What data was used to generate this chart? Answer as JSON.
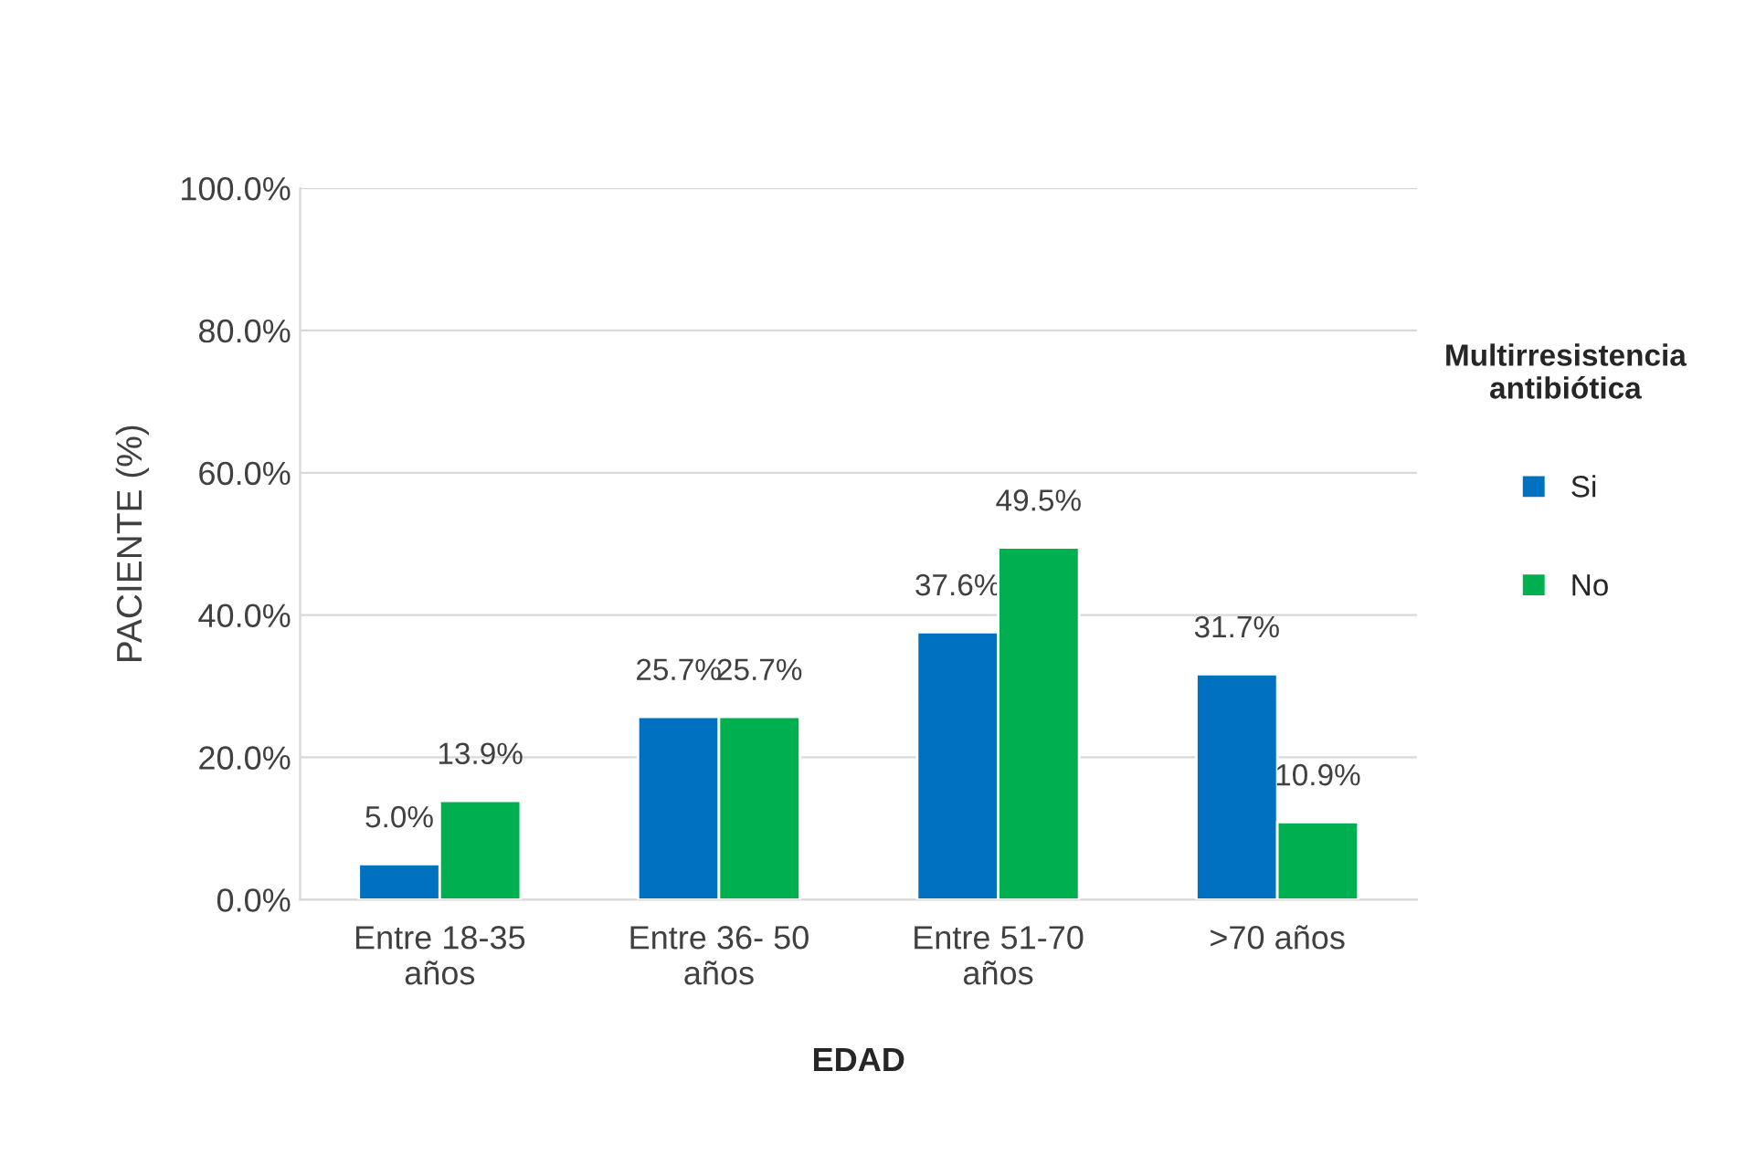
{
  "chart_data": {
    "type": "bar",
    "xlabel": "EDAD",
    "ylabel": "PACIENTE (%)",
    "legend_title": "Multirresistencia antibiótica",
    "categories": [
      "Entre 18-35 años",
      "Entre 36- 50 años",
      "Entre 51-70 años",
      ">70 años"
    ],
    "series": [
      {
        "name": "Si",
        "color": "#0070c0",
        "values": [
          5.0,
          25.7,
          37.6,
          31.7
        ],
        "value_labels": [
          "5.0%",
          "25.7%",
          "37.6%",
          "31.7%"
        ]
      },
      {
        "name": "No",
        "color": "#00b050",
        "values": [
          13.9,
          25.7,
          49.5,
          10.9
        ],
        "value_labels": [
          "13.9%",
          "25.7%",
          "49.5%",
          "10.9%"
        ]
      }
    ],
    "ylim": [
      0,
      100
    ],
    "yticks": [
      {
        "value": 0,
        "label": "0.0%"
      },
      {
        "value": 20,
        "label": "20.0%"
      },
      {
        "value": 40,
        "label": "40.0%"
      },
      {
        "value": 60,
        "label": "60.0%"
      },
      {
        "value": 80,
        "label": "80.0%"
      },
      {
        "value": 100,
        "label": "100.0%"
      }
    ],
    "grid": "y",
    "legend": "right"
  }
}
